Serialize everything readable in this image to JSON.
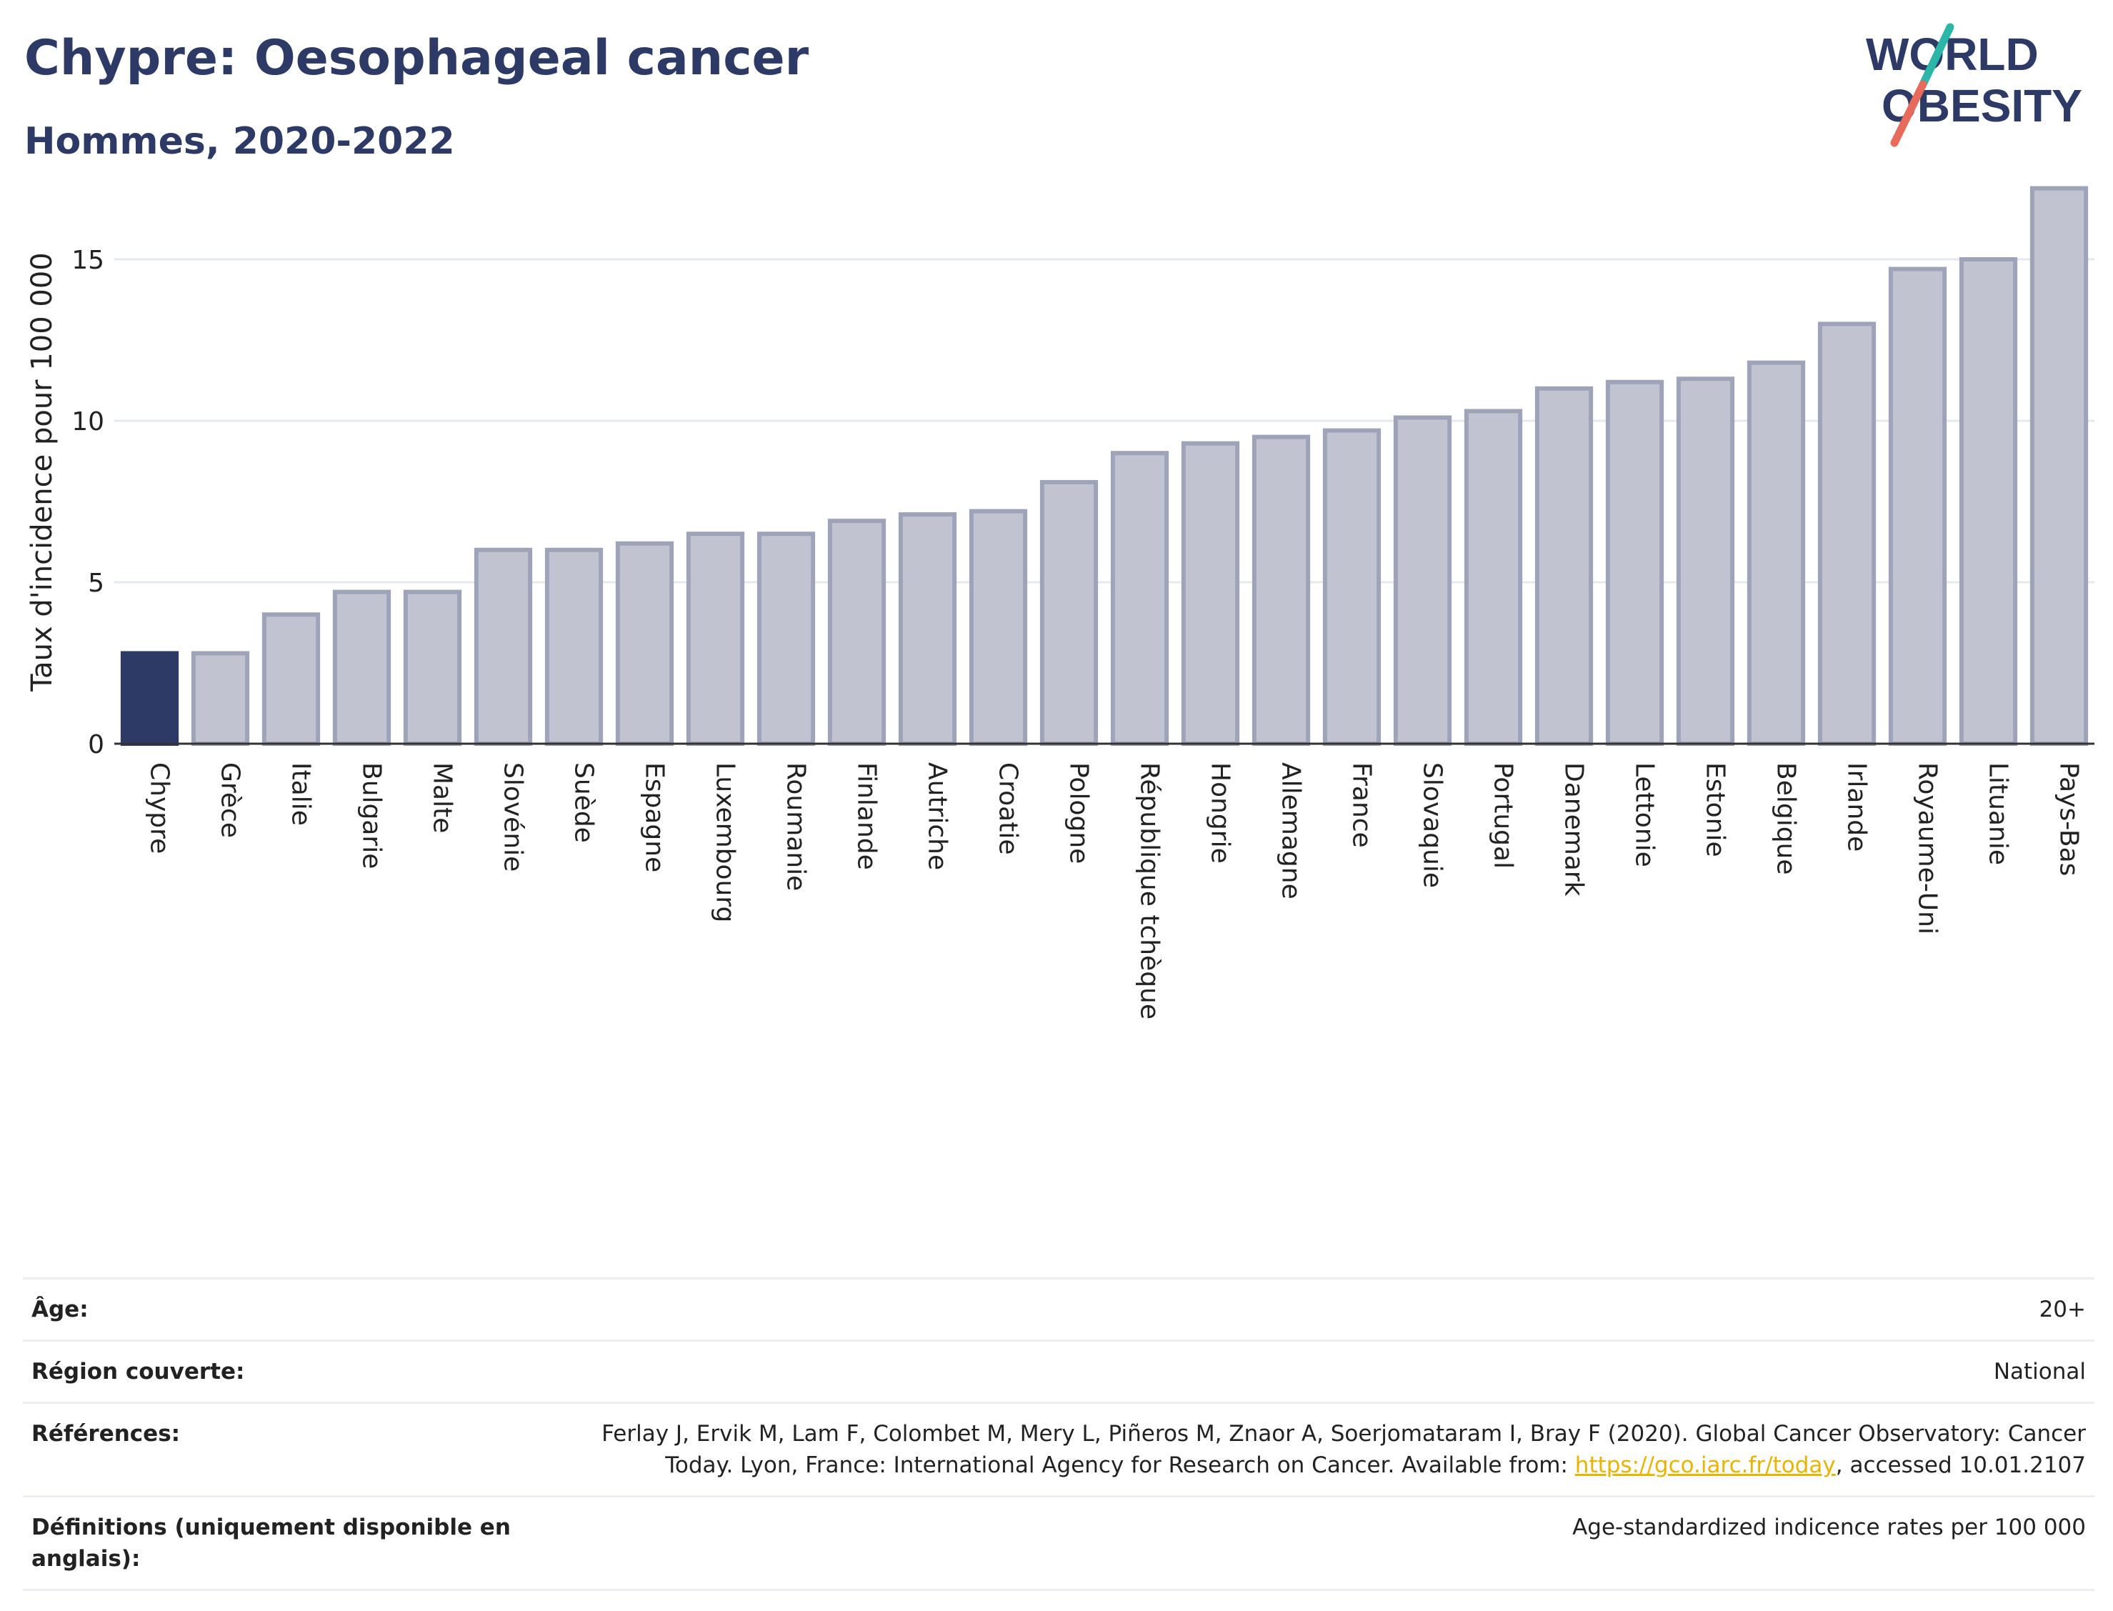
{
  "header": {
    "title": "Chypre: Oesophageal cancer",
    "subtitle": "Hommes, 2020-2022"
  },
  "logo": {
    "line1": "WORLD",
    "line2": "OBESITY"
  },
  "colors": {
    "highlight_bar": "#2d3a66",
    "bar_fill": "#c1c4d0",
    "bar_stroke": "#9ea3b8",
    "grid": "#e6e8ef",
    "logo_text": "#2d3a66",
    "logo_teal": "#2bb6a8",
    "logo_red": "#e86a5c"
  },
  "chart_data": {
    "type": "bar",
    "ylabel": "Taux d'incidence pour 100 000",
    "xlabel": "",
    "ylim": [
      0,
      17.5
    ],
    "yticks": [
      0,
      5,
      10,
      15
    ],
    "grid": true,
    "highlight": "Chypre",
    "categories": [
      "Chypre",
      "Grèce",
      "Italie",
      "Bulgarie",
      "Malte",
      "Slovénie",
      "Suède",
      "Espagne",
      "Luxembourg",
      "Roumanie",
      "Finlande",
      "Autriche",
      "Croatie",
      "Pologne",
      "République tchèque",
      "Hongrie",
      "Allemagne",
      "France",
      "Slovaquie",
      "Portugal",
      "Danemark",
      "Lettonie",
      "Estonie",
      "Belgique",
      "Irlande",
      "Royaume-Uni",
      "Lituanie",
      "Pays-Bas"
    ],
    "values": [
      2.8,
      2.8,
      4.0,
      4.7,
      4.7,
      6.0,
      6.0,
      6.2,
      6.5,
      6.5,
      6.9,
      7.1,
      7.2,
      8.1,
      9.0,
      9.3,
      9.5,
      9.7,
      10.1,
      10.3,
      11.0,
      11.2,
      11.3,
      11.8,
      13.0,
      14.7,
      15.0,
      17.2
    ]
  },
  "info": {
    "age_label": "Âge:",
    "age_value": "20+",
    "region_label": "Région couverte:",
    "region_value": "National",
    "references_label": "Références:",
    "references_text_1": "Ferlay J, Ervik M, Lam F, Colombet M, Mery L, Piñeros M, Znaor A, Soerjomataram I, Bray F (2020). Global Cancer Observatory: Cancer Today. Lyon, France: International Agency for Research on Cancer. Available from: ",
    "references_link": "https://gco.iarc.fr/today",
    "references_text_2": ", accessed 10.01.2107",
    "definitions_label": "Définitions (uniquement disponible en anglais):",
    "definitions_value": "Age-standardized indicence rates per 100 000"
  }
}
